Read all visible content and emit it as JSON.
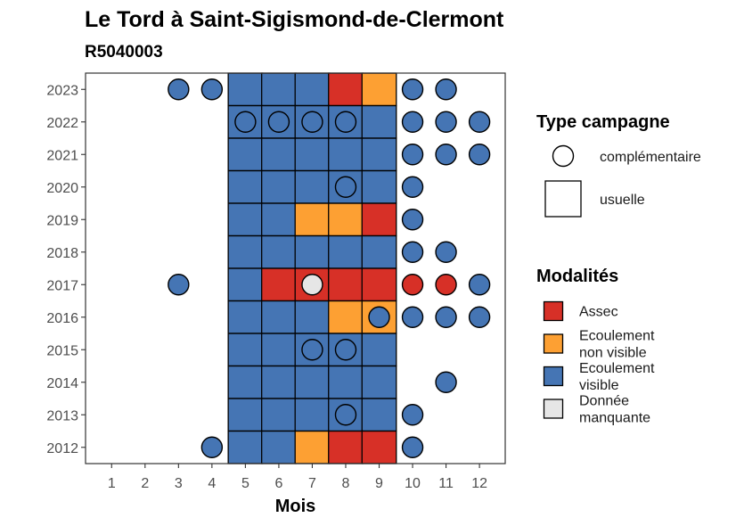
{
  "chart_data": {
    "type": "heatmap",
    "title": "Le Tord à Saint-Sigismond-de-Clermont",
    "subtitle": "R5040003",
    "xlabel": "Mois",
    "ylabel": "",
    "x_ticks": [
      "1",
      "2",
      "3",
      "4",
      "5",
      "6",
      "7",
      "8",
      "9",
      "10",
      "11",
      "12"
    ],
    "y_ticks": [
      "2012",
      "2013",
      "2014",
      "2015",
      "2016",
      "2017",
      "2018",
      "2019",
      "2020",
      "2021",
      "2022",
      "2023"
    ],
    "grid": false,
    "colors": {
      "assec": "#D73027",
      "ecoulement_non_visible": "#FDA033",
      "ecoulement_visible": "#4575B4",
      "donnee_manquante": "#E6E6E6"
    },
    "legend_shape": {
      "title": "Type campagne",
      "items": [
        {
          "shape": "circle",
          "label": "complémentaire"
        },
        {
          "shape": "square",
          "label": "usuelle"
        }
      ]
    },
    "legend_color": {
      "title": "Modalités",
      "items": [
        {
          "key": "assec",
          "lines": [
            "Assec"
          ]
        },
        {
          "key": "ecoulement_non_visible",
          "lines": [
            "Ecoulement",
            "non visible"
          ]
        },
        {
          "key": "ecoulement_visible",
          "lines": [
            "Ecoulement",
            "visible"
          ]
        },
        {
          "key": "donnee_manquante",
          "lines": [
            "Donnée",
            "manquante"
          ]
        }
      ]
    },
    "observations": [
      {
        "year": 2023,
        "month": 3,
        "type": "complémentaire",
        "modalite": "ecoulement_visible"
      },
      {
        "year": 2023,
        "month": 4,
        "type": "complémentaire",
        "modalite": "ecoulement_visible"
      },
      {
        "year": 2023,
        "month": 5,
        "type": "usuelle",
        "modalite": "ecoulement_visible"
      },
      {
        "year": 2023,
        "month": 6,
        "type": "usuelle",
        "modalite": "ecoulement_visible"
      },
      {
        "year": 2023,
        "month": 7,
        "type": "usuelle",
        "modalite": "ecoulement_visible"
      },
      {
        "year": 2023,
        "month": 8,
        "type": "usuelle",
        "modalite": "assec"
      },
      {
        "year": 2023,
        "month": 9,
        "type": "usuelle",
        "modalite": "ecoulement_non_visible"
      },
      {
        "year": 2023,
        "month": 10,
        "type": "complémentaire",
        "modalite": "ecoulement_visible"
      },
      {
        "year": 2023,
        "month": 11,
        "type": "complémentaire",
        "modalite": "ecoulement_visible"
      },
      {
        "year": 2022,
        "month": 5,
        "type": "usuelle",
        "modalite": "ecoulement_visible"
      },
      {
        "year": 2022,
        "month": 6,
        "type": "usuelle",
        "modalite": "ecoulement_visible"
      },
      {
        "year": 2022,
        "month": 7,
        "type": "usuelle",
        "modalite": "ecoulement_visible"
      },
      {
        "year": 2022,
        "month": 8,
        "type": "usuelle",
        "modalite": "ecoulement_visible"
      },
      {
        "year": 2022,
        "month": 9,
        "type": "usuelle",
        "modalite": "ecoulement_visible"
      },
      {
        "year": 2022,
        "month": 5,
        "type": "complémentaire",
        "modalite": "ecoulement_visible"
      },
      {
        "year": 2022,
        "month": 6,
        "type": "complémentaire",
        "modalite": "ecoulement_visible"
      },
      {
        "year": 2022,
        "month": 7,
        "type": "complémentaire",
        "modalite": "ecoulement_visible"
      },
      {
        "year": 2022,
        "month": 8,
        "type": "complémentaire",
        "modalite": "ecoulement_visible"
      },
      {
        "year": 2022,
        "month": 10,
        "type": "complémentaire",
        "modalite": "ecoulement_visible"
      },
      {
        "year": 2022,
        "month": 11,
        "type": "complémentaire",
        "modalite": "ecoulement_visible"
      },
      {
        "year": 2022,
        "month": 12,
        "type": "complémentaire",
        "modalite": "ecoulement_visible"
      },
      {
        "year": 2021,
        "month": 5,
        "type": "usuelle",
        "modalite": "ecoulement_visible"
      },
      {
        "year": 2021,
        "month": 6,
        "type": "usuelle",
        "modalite": "ecoulement_visible"
      },
      {
        "year": 2021,
        "month": 7,
        "type": "usuelle",
        "modalite": "ecoulement_visible"
      },
      {
        "year": 2021,
        "month": 8,
        "type": "usuelle",
        "modalite": "ecoulement_visible"
      },
      {
        "year": 2021,
        "month": 9,
        "type": "usuelle",
        "modalite": "ecoulement_visible"
      },
      {
        "year": 2021,
        "month": 10,
        "type": "complémentaire",
        "modalite": "ecoulement_visible"
      },
      {
        "year": 2021,
        "month": 11,
        "type": "complémentaire",
        "modalite": "ecoulement_visible"
      },
      {
        "year": 2021,
        "month": 12,
        "type": "complémentaire",
        "modalite": "ecoulement_visible"
      },
      {
        "year": 2020,
        "month": 5,
        "type": "usuelle",
        "modalite": "ecoulement_visible"
      },
      {
        "year": 2020,
        "month": 6,
        "type": "usuelle",
        "modalite": "ecoulement_visible"
      },
      {
        "year": 2020,
        "month": 7,
        "type": "usuelle",
        "modalite": "ecoulement_visible"
      },
      {
        "year": 2020,
        "month": 8,
        "type": "usuelle",
        "modalite": "ecoulement_visible"
      },
      {
        "year": 2020,
        "month": 9,
        "type": "usuelle",
        "modalite": "ecoulement_visible"
      },
      {
        "year": 2020,
        "month": 8,
        "type": "complémentaire",
        "modalite": "ecoulement_visible"
      },
      {
        "year": 2020,
        "month": 10,
        "type": "complémentaire",
        "modalite": "ecoulement_visible"
      },
      {
        "year": 2019,
        "month": 5,
        "type": "usuelle",
        "modalite": "ecoulement_visible"
      },
      {
        "year": 2019,
        "month": 6,
        "type": "usuelle",
        "modalite": "ecoulement_visible"
      },
      {
        "year": 2019,
        "month": 7,
        "type": "usuelle",
        "modalite": "ecoulement_non_visible"
      },
      {
        "year": 2019,
        "month": 8,
        "type": "usuelle",
        "modalite": "ecoulement_non_visible"
      },
      {
        "year": 2019,
        "month": 9,
        "type": "usuelle",
        "modalite": "assec"
      },
      {
        "year": 2019,
        "month": 10,
        "type": "complémentaire",
        "modalite": "ecoulement_visible"
      },
      {
        "year": 2018,
        "month": 5,
        "type": "usuelle",
        "modalite": "ecoulement_visible"
      },
      {
        "year": 2018,
        "month": 6,
        "type": "usuelle",
        "modalite": "ecoulement_visible"
      },
      {
        "year": 2018,
        "month": 7,
        "type": "usuelle",
        "modalite": "ecoulement_visible"
      },
      {
        "year": 2018,
        "month": 8,
        "type": "usuelle",
        "modalite": "ecoulement_visible"
      },
      {
        "year": 2018,
        "month": 9,
        "type": "usuelle",
        "modalite": "ecoulement_visible"
      },
      {
        "year": 2018,
        "month": 10,
        "type": "complémentaire",
        "modalite": "ecoulement_visible"
      },
      {
        "year": 2018,
        "month": 11,
        "type": "complémentaire",
        "modalite": "ecoulement_visible"
      },
      {
        "year": 2017,
        "month": 3,
        "type": "complémentaire",
        "modalite": "ecoulement_visible"
      },
      {
        "year": 2017,
        "month": 5,
        "type": "usuelle",
        "modalite": "ecoulement_visible"
      },
      {
        "year": 2017,
        "month": 6,
        "type": "usuelle",
        "modalite": "assec"
      },
      {
        "year": 2017,
        "month": 7,
        "type": "usuelle",
        "modalite": "assec"
      },
      {
        "year": 2017,
        "month": 8,
        "type": "usuelle",
        "modalite": "assec"
      },
      {
        "year": 2017,
        "month": 9,
        "type": "usuelle",
        "modalite": "assec"
      },
      {
        "year": 2017,
        "month": 7,
        "type": "complémentaire",
        "modalite": "donnee_manquante"
      },
      {
        "year": 2017,
        "month": 10,
        "type": "complémentaire",
        "modalite": "assec"
      },
      {
        "year": 2017,
        "month": 11,
        "type": "complémentaire",
        "modalite": "assec"
      },
      {
        "year": 2017,
        "month": 12,
        "type": "complémentaire",
        "modalite": "ecoulement_visible"
      },
      {
        "year": 2016,
        "month": 5,
        "type": "usuelle",
        "modalite": "ecoulement_visible"
      },
      {
        "year": 2016,
        "month": 6,
        "type": "usuelle",
        "modalite": "ecoulement_visible"
      },
      {
        "year": 2016,
        "month": 7,
        "type": "usuelle",
        "modalite": "ecoulement_visible"
      },
      {
        "year": 2016,
        "month": 8,
        "type": "usuelle",
        "modalite": "ecoulement_non_visible"
      },
      {
        "year": 2016,
        "month": 9,
        "type": "usuelle",
        "modalite": "ecoulement_non_visible"
      },
      {
        "year": 2016,
        "month": 9,
        "type": "complémentaire",
        "modalite": "ecoulement_visible"
      },
      {
        "year": 2016,
        "month": 10,
        "type": "complémentaire",
        "modalite": "ecoulement_visible"
      },
      {
        "year": 2016,
        "month": 11,
        "type": "complémentaire",
        "modalite": "ecoulement_visible"
      },
      {
        "year": 2016,
        "month": 12,
        "type": "complémentaire",
        "modalite": "ecoulement_visible"
      },
      {
        "year": 2015,
        "month": 5,
        "type": "usuelle",
        "modalite": "ecoulement_visible"
      },
      {
        "year": 2015,
        "month": 6,
        "type": "usuelle",
        "modalite": "ecoulement_visible"
      },
      {
        "year": 2015,
        "month": 7,
        "type": "usuelle",
        "modalite": "ecoulement_visible"
      },
      {
        "year": 2015,
        "month": 8,
        "type": "usuelle",
        "modalite": "ecoulement_visible"
      },
      {
        "year": 2015,
        "month": 9,
        "type": "usuelle",
        "modalite": "ecoulement_visible"
      },
      {
        "year": 2015,
        "month": 7,
        "type": "complémentaire",
        "modalite": "ecoulement_visible"
      },
      {
        "year": 2015,
        "month": 8,
        "type": "complémentaire",
        "modalite": "ecoulement_visible"
      },
      {
        "year": 2014,
        "month": 5,
        "type": "usuelle",
        "modalite": "ecoulement_visible"
      },
      {
        "year": 2014,
        "month": 6,
        "type": "usuelle",
        "modalite": "ecoulement_visible"
      },
      {
        "year": 2014,
        "month": 7,
        "type": "usuelle",
        "modalite": "ecoulement_visible"
      },
      {
        "year": 2014,
        "month": 8,
        "type": "usuelle",
        "modalite": "ecoulement_visible"
      },
      {
        "year": 2014,
        "month": 9,
        "type": "usuelle",
        "modalite": "ecoulement_visible"
      },
      {
        "year": 2014,
        "month": 11,
        "type": "complémentaire",
        "modalite": "ecoulement_visible"
      },
      {
        "year": 2013,
        "month": 5,
        "type": "usuelle",
        "modalite": "ecoulement_visible"
      },
      {
        "year": 2013,
        "month": 6,
        "type": "usuelle",
        "modalite": "ecoulement_visible"
      },
      {
        "year": 2013,
        "month": 7,
        "type": "usuelle",
        "modalite": "ecoulement_visible"
      },
      {
        "year": 2013,
        "month": 8,
        "type": "usuelle",
        "modalite": "ecoulement_visible"
      },
      {
        "year": 2013,
        "month": 9,
        "type": "usuelle",
        "modalite": "ecoulement_visible"
      },
      {
        "year": 2013,
        "month": 8,
        "type": "complémentaire",
        "modalite": "ecoulement_visible"
      },
      {
        "year": 2013,
        "month": 10,
        "type": "complémentaire",
        "modalite": "ecoulement_visible"
      },
      {
        "year": 2012,
        "month": 4,
        "type": "complémentaire",
        "modalite": "ecoulement_visible"
      },
      {
        "year": 2012,
        "month": 5,
        "type": "usuelle",
        "modalite": "ecoulement_visible"
      },
      {
        "year": 2012,
        "month": 6,
        "type": "usuelle",
        "modalite": "ecoulement_visible"
      },
      {
        "year": 2012,
        "month": 7,
        "type": "usuelle",
        "modalite": "ecoulement_non_visible"
      },
      {
        "year": 2012,
        "month": 8,
        "type": "usuelle",
        "modalite": "assec"
      },
      {
        "year": 2012,
        "month": 9,
        "type": "usuelle",
        "modalite": "assec"
      },
      {
        "year": 2012,
        "month": 10,
        "type": "complémentaire",
        "modalite": "ecoulement_visible"
      }
    ]
  }
}
